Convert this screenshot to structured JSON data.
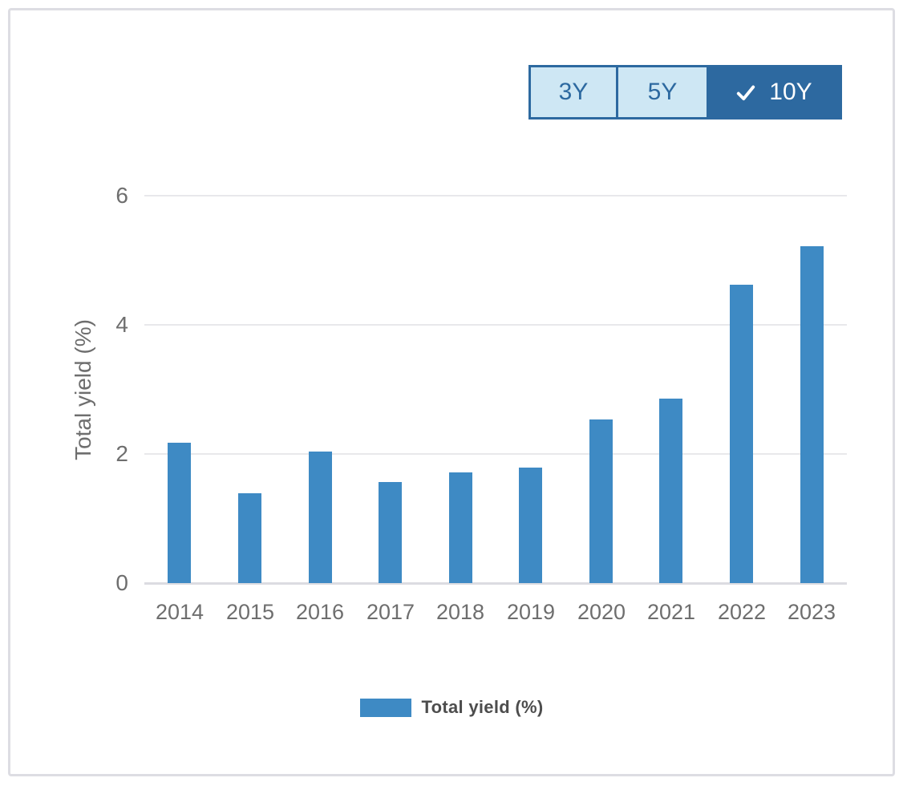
{
  "toolbar": {
    "options": [
      {
        "label": "3Y",
        "selected": false
      },
      {
        "label": "5Y",
        "selected": false
      },
      {
        "label": "10Y",
        "selected": true
      }
    ],
    "selected_icon": "check-icon"
  },
  "chart_data": {
    "type": "bar",
    "categories": [
      "2014",
      "2015",
      "2016",
      "2017",
      "2018",
      "2019",
      "2020",
      "2021",
      "2022",
      "2023"
    ],
    "series": [
      {
        "name": "Total yield (%)",
        "values": [
          2.17,
          1.39,
          2.04,
          1.57,
          1.72,
          1.79,
          2.53,
          2.86,
          4.62,
          5.22
        ]
      }
    ],
    "title": "",
    "xlabel": "",
    "ylabel": "Total yield (%)",
    "yticks": [
      0,
      2,
      4,
      6
    ],
    "ylim": [
      0,
      6.5
    ],
    "grid": true,
    "legend_label": "Total yield (%)",
    "legend_position": "bottom",
    "bar_color": "#3e8ac4"
  },
  "colors": {
    "bar": "#3e8ac4",
    "toggle_dark": "#2d69a0",
    "toggle_light": "#cee7f4",
    "toggle_selected_text": "#ffffff",
    "grid_line": "#e8e8eb",
    "axis_line": "#dcdce1",
    "axis_text": "#6e6e6e",
    "legend_text": "#4d4d4d",
    "card_border": "#dddde3"
  }
}
